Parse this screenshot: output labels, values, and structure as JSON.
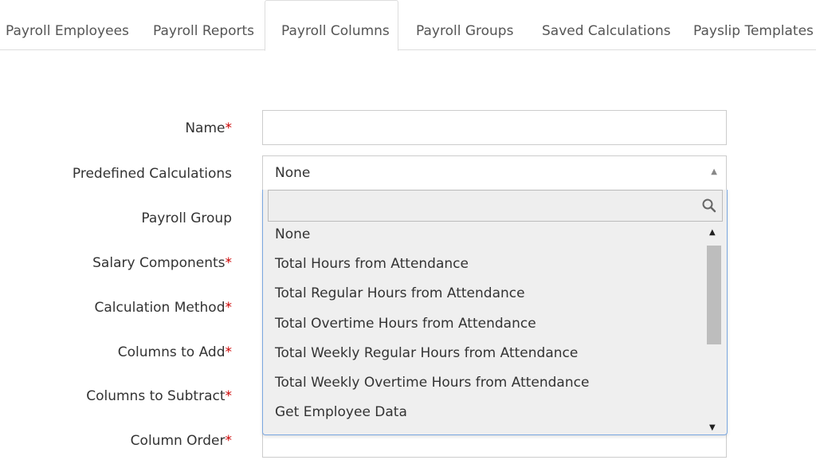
{
  "tabs": [
    {
      "label": "Payroll Employees"
    },
    {
      "label": "Payroll Reports"
    },
    {
      "label": "Payroll Columns"
    },
    {
      "label": "Payroll Groups"
    },
    {
      "label": "Saved Calculations"
    },
    {
      "label": "Payslip Templates"
    }
  ],
  "active_tab": "Payroll Columns",
  "form": {
    "name_label": "Name",
    "predefined_label": "Predefined Calculations",
    "payroll_group_label": "Payroll Group",
    "salary_components_label": "Salary Components",
    "calculation_method_label": "Calculation Method",
    "columns_to_add_label": "Columns to Add",
    "columns_to_subtract_label": "Columns to Subtract",
    "column_order_label": "Column Order",
    "required_mark": "*",
    "name_value": "",
    "predefined_selected": "None"
  },
  "dropdown": {
    "search_value": "",
    "options": [
      "None",
      "Total Hours from Attendance",
      "Total Regular Hours from Attendance",
      "Total Overtime Hours from Attendance",
      "Total Weekly Regular Hours from Attendance",
      "Total Weekly Overtime Hours from Attendance",
      "Get Employee Data"
    ]
  },
  "colors": {
    "required": "#cc0000",
    "focus_border": "#7aa7e0",
    "dropdown_bg": "#efefef",
    "scroll_thumb": "#bdbdbd"
  }
}
